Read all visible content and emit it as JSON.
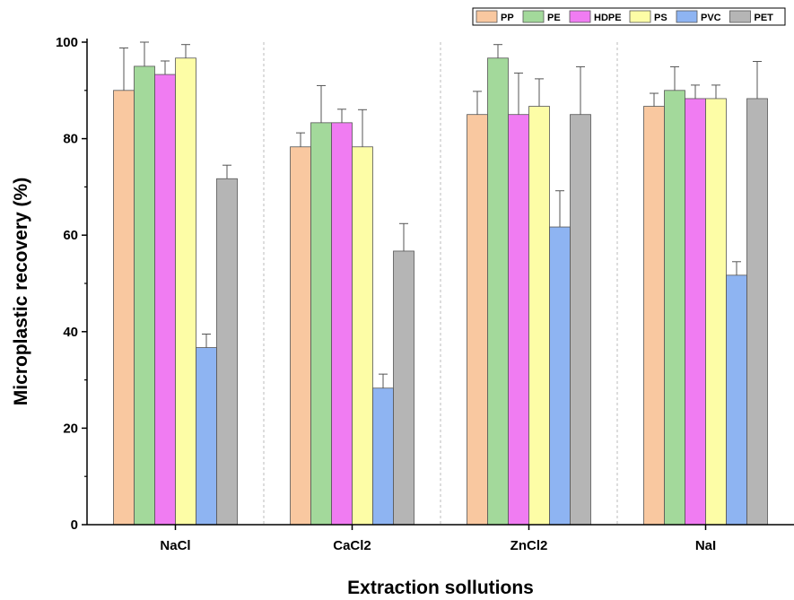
{
  "chart_data": {
    "type": "bar",
    "title": "",
    "xlabel": "Extraction sollutions",
    "ylabel": "Microplastic recovery (%)",
    "ylim": [
      0,
      100
    ],
    "yticks": [
      "0",
      "20",
      "40",
      "60",
      "80",
      "100"
    ],
    "categories": [
      "NaCl",
      "CaCl2",
      "ZnCl2",
      "NaI"
    ],
    "legend_position": "top-right",
    "grid": false,
    "series": [
      {
        "name": "PP",
        "color": "#F9C8A0",
        "values": [
          90,
          78.3,
          85,
          86.7
        ],
        "errors": [
          8.8,
          2.9,
          4.8,
          2.7
        ]
      },
      {
        "name": "PE",
        "color": "#A3D99B",
        "values": [
          95,
          83.3,
          96.7,
          90
        ],
        "errors": [
          5,
          7.7,
          2.8,
          4.9
        ]
      },
      {
        "name": "HDPE",
        "color": "#F07CF2",
        "values": [
          93.3,
          83.3,
          85,
          88.3
        ],
        "errors": [
          2.8,
          2.8,
          8.6,
          2.8
        ]
      },
      {
        "name": "PS",
        "color": "#FDFDA6",
        "values": [
          96.7,
          78.3,
          86.7,
          88.3
        ],
        "errors": [
          2.8,
          7.7,
          5.7,
          2.8
        ]
      },
      {
        "name": "PVC",
        "color": "#8EB4F2",
        "values": [
          36.7,
          28.3,
          61.7,
          51.7
        ],
        "errors": [
          2.8,
          2.9,
          7.5,
          2.8
        ]
      },
      {
        "name": "PET",
        "color": "#B5B5B5",
        "values": [
          71.7,
          56.7,
          85,
          88.3
        ],
        "errors": [
          2.8,
          5.7,
          9.9,
          7.7
        ]
      }
    ]
  }
}
